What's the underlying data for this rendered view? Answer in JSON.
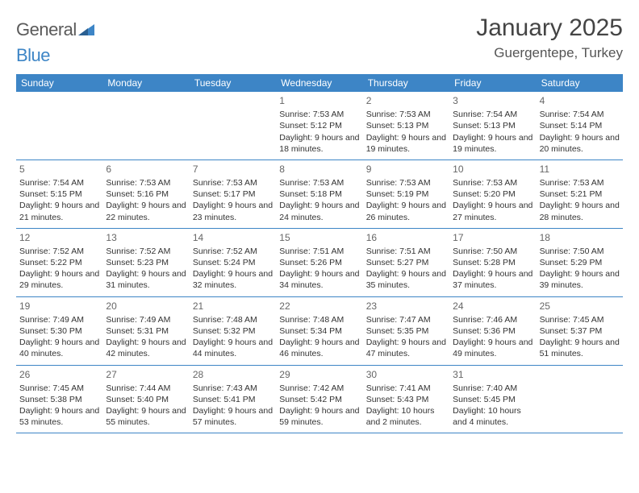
{
  "brand": {
    "part1": "General",
    "part2": "Blue"
  },
  "title": "January 2025",
  "location": "Guergentepe, Turkey",
  "colors": {
    "header_bar": "#3d85c6",
    "row_divider": "#3d85c6",
    "text": "#333333",
    "daynum": "#666666",
    "title": "#444444",
    "background": "#ffffff"
  },
  "typography": {
    "title_fontsize": 30,
    "location_fontsize": 17,
    "dow_fontsize": 12,
    "cell_fontsize": 10.5,
    "daynum_fontsize": 12
  },
  "days_of_week": [
    "Sunday",
    "Monday",
    "Tuesday",
    "Wednesday",
    "Thursday",
    "Friday",
    "Saturday"
  ],
  "weeks": [
    [
      {
        "day": "",
        "sunrise": "",
        "sunset": "",
        "daylight": ""
      },
      {
        "day": "",
        "sunrise": "",
        "sunset": "",
        "daylight": ""
      },
      {
        "day": "",
        "sunrise": "",
        "sunset": "",
        "daylight": ""
      },
      {
        "day": "1",
        "sunrise": "Sunrise: 7:53 AM",
        "sunset": "Sunset: 5:12 PM",
        "daylight": "Daylight: 9 hours and 18 minutes."
      },
      {
        "day": "2",
        "sunrise": "Sunrise: 7:53 AM",
        "sunset": "Sunset: 5:13 PM",
        "daylight": "Daylight: 9 hours and 19 minutes."
      },
      {
        "day": "3",
        "sunrise": "Sunrise: 7:54 AM",
        "sunset": "Sunset: 5:13 PM",
        "daylight": "Daylight: 9 hours and 19 minutes."
      },
      {
        "day": "4",
        "sunrise": "Sunrise: 7:54 AM",
        "sunset": "Sunset: 5:14 PM",
        "daylight": "Daylight: 9 hours and 20 minutes."
      }
    ],
    [
      {
        "day": "5",
        "sunrise": "Sunrise: 7:54 AM",
        "sunset": "Sunset: 5:15 PM",
        "daylight": "Daylight: 9 hours and 21 minutes."
      },
      {
        "day": "6",
        "sunrise": "Sunrise: 7:53 AM",
        "sunset": "Sunset: 5:16 PM",
        "daylight": "Daylight: 9 hours and 22 minutes."
      },
      {
        "day": "7",
        "sunrise": "Sunrise: 7:53 AM",
        "sunset": "Sunset: 5:17 PM",
        "daylight": "Daylight: 9 hours and 23 minutes."
      },
      {
        "day": "8",
        "sunrise": "Sunrise: 7:53 AM",
        "sunset": "Sunset: 5:18 PM",
        "daylight": "Daylight: 9 hours and 24 minutes."
      },
      {
        "day": "9",
        "sunrise": "Sunrise: 7:53 AM",
        "sunset": "Sunset: 5:19 PM",
        "daylight": "Daylight: 9 hours and 26 minutes."
      },
      {
        "day": "10",
        "sunrise": "Sunrise: 7:53 AM",
        "sunset": "Sunset: 5:20 PM",
        "daylight": "Daylight: 9 hours and 27 minutes."
      },
      {
        "day": "11",
        "sunrise": "Sunrise: 7:53 AM",
        "sunset": "Sunset: 5:21 PM",
        "daylight": "Daylight: 9 hours and 28 minutes."
      }
    ],
    [
      {
        "day": "12",
        "sunrise": "Sunrise: 7:52 AM",
        "sunset": "Sunset: 5:22 PM",
        "daylight": "Daylight: 9 hours and 29 minutes."
      },
      {
        "day": "13",
        "sunrise": "Sunrise: 7:52 AM",
        "sunset": "Sunset: 5:23 PM",
        "daylight": "Daylight: 9 hours and 31 minutes."
      },
      {
        "day": "14",
        "sunrise": "Sunrise: 7:52 AM",
        "sunset": "Sunset: 5:24 PM",
        "daylight": "Daylight: 9 hours and 32 minutes."
      },
      {
        "day": "15",
        "sunrise": "Sunrise: 7:51 AM",
        "sunset": "Sunset: 5:26 PM",
        "daylight": "Daylight: 9 hours and 34 minutes."
      },
      {
        "day": "16",
        "sunrise": "Sunrise: 7:51 AM",
        "sunset": "Sunset: 5:27 PM",
        "daylight": "Daylight: 9 hours and 35 minutes."
      },
      {
        "day": "17",
        "sunrise": "Sunrise: 7:50 AM",
        "sunset": "Sunset: 5:28 PM",
        "daylight": "Daylight: 9 hours and 37 minutes."
      },
      {
        "day": "18",
        "sunrise": "Sunrise: 7:50 AM",
        "sunset": "Sunset: 5:29 PM",
        "daylight": "Daylight: 9 hours and 39 minutes."
      }
    ],
    [
      {
        "day": "19",
        "sunrise": "Sunrise: 7:49 AM",
        "sunset": "Sunset: 5:30 PM",
        "daylight": "Daylight: 9 hours and 40 minutes."
      },
      {
        "day": "20",
        "sunrise": "Sunrise: 7:49 AM",
        "sunset": "Sunset: 5:31 PM",
        "daylight": "Daylight: 9 hours and 42 minutes."
      },
      {
        "day": "21",
        "sunrise": "Sunrise: 7:48 AM",
        "sunset": "Sunset: 5:32 PM",
        "daylight": "Daylight: 9 hours and 44 minutes."
      },
      {
        "day": "22",
        "sunrise": "Sunrise: 7:48 AM",
        "sunset": "Sunset: 5:34 PM",
        "daylight": "Daylight: 9 hours and 46 minutes."
      },
      {
        "day": "23",
        "sunrise": "Sunrise: 7:47 AM",
        "sunset": "Sunset: 5:35 PM",
        "daylight": "Daylight: 9 hours and 47 minutes."
      },
      {
        "day": "24",
        "sunrise": "Sunrise: 7:46 AM",
        "sunset": "Sunset: 5:36 PM",
        "daylight": "Daylight: 9 hours and 49 minutes."
      },
      {
        "day": "25",
        "sunrise": "Sunrise: 7:45 AM",
        "sunset": "Sunset: 5:37 PM",
        "daylight": "Daylight: 9 hours and 51 minutes."
      }
    ],
    [
      {
        "day": "26",
        "sunrise": "Sunrise: 7:45 AM",
        "sunset": "Sunset: 5:38 PM",
        "daylight": "Daylight: 9 hours and 53 minutes."
      },
      {
        "day": "27",
        "sunrise": "Sunrise: 7:44 AM",
        "sunset": "Sunset: 5:40 PM",
        "daylight": "Daylight: 9 hours and 55 minutes."
      },
      {
        "day": "28",
        "sunrise": "Sunrise: 7:43 AM",
        "sunset": "Sunset: 5:41 PM",
        "daylight": "Daylight: 9 hours and 57 minutes."
      },
      {
        "day": "29",
        "sunrise": "Sunrise: 7:42 AM",
        "sunset": "Sunset: 5:42 PM",
        "daylight": "Daylight: 9 hours and 59 minutes."
      },
      {
        "day": "30",
        "sunrise": "Sunrise: 7:41 AM",
        "sunset": "Sunset: 5:43 PM",
        "daylight": "Daylight: 10 hours and 2 minutes."
      },
      {
        "day": "31",
        "sunrise": "Sunrise: 7:40 AM",
        "sunset": "Sunset: 5:45 PM",
        "daylight": "Daylight: 10 hours and 4 minutes."
      },
      {
        "day": "",
        "sunrise": "",
        "sunset": "",
        "daylight": ""
      }
    ]
  ]
}
